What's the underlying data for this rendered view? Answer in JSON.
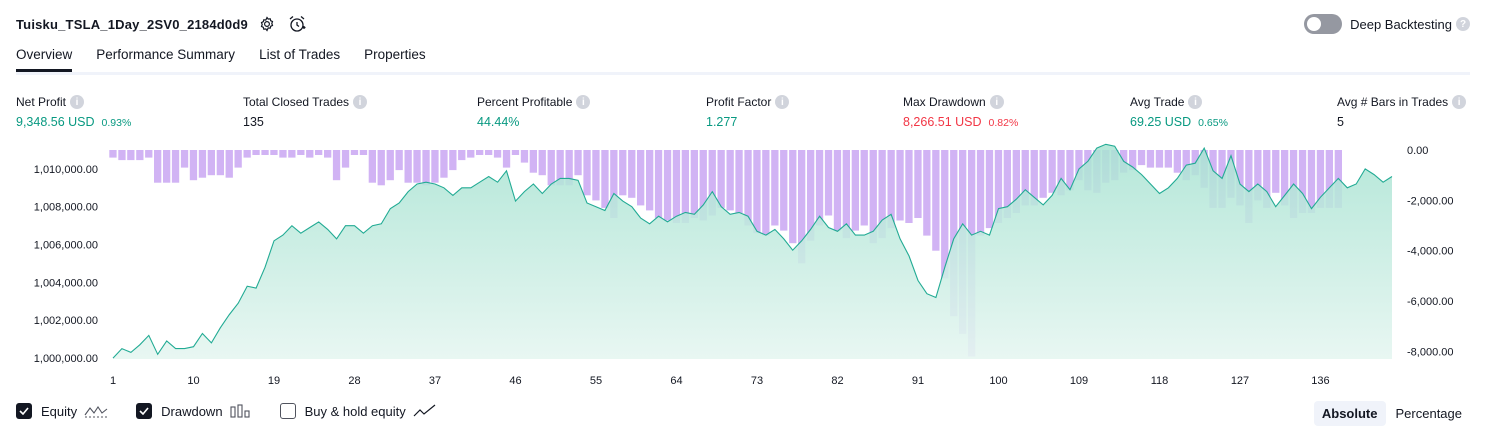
{
  "header": {
    "strategy_title": "Tuisku_TSLA_1Day_2SV0_2184d0d9",
    "icons": [
      "gear-icon",
      "alarm-plus-icon"
    ],
    "deep_backtesting_label": "Deep Backtesting",
    "deep_backtesting_enabled": false
  },
  "tabs": [
    {
      "label": "Overview",
      "active": true
    },
    {
      "label": "Performance Summary",
      "active": false
    },
    {
      "label": "List of Trades",
      "active": false
    },
    {
      "label": "Properties",
      "active": false
    }
  ],
  "metrics": [
    {
      "label": "Net Profit",
      "value": "9,348.56 USD",
      "pct": "0.93%",
      "color": "#089981"
    },
    {
      "label": "Total Closed Trades",
      "value": "135",
      "pct": "",
      "color": "#131722"
    },
    {
      "label": "Percent Profitable",
      "value": "44.44%",
      "pct": "",
      "color": "#089981"
    },
    {
      "label": "Profit Factor",
      "value": "1.277",
      "pct": "",
      "color": "#089981"
    },
    {
      "label": "Max Drawdown",
      "value": "8,266.51 USD",
      "pct": "0.82%",
      "color": "#f23645"
    },
    {
      "label": "Avg Trade",
      "value": "69.25 USD",
      "pct": "0.65%",
      "color": "#089981"
    },
    {
      "label": "Avg # Bars in Trades",
      "value": "5",
      "pct": "",
      "color": "#131722"
    }
  ],
  "legend": {
    "equity_label": "Equity",
    "equity_checked": true,
    "drawdown_label": "Drawdown",
    "drawdown_checked": true,
    "buyhold_label": "Buy & hold equity",
    "buyhold_checked": false
  },
  "mode": {
    "absolute_label": "Absolute",
    "percentage_label": "Percentage",
    "selected": "Absolute"
  },
  "chart_data": {
    "type": "line+bar",
    "x_ticks": [
      "1",
      "10",
      "19",
      "28",
      "37",
      "46",
      "55",
      "64",
      "73",
      "82",
      "91",
      "100",
      "109",
      "118",
      "127",
      "136"
    ],
    "left_axis_ticks": [
      "1,010,000.00",
      "1,008,000.00",
      "1,006,000.00",
      "1,004,000.00",
      "1,002,000.00",
      "1,000,000.00"
    ],
    "right_axis_ticks": [
      "0.00",
      "-2,000.00",
      "-4,000.00",
      "-6,000.00",
      "-8,000.00"
    ],
    "left_ylim": [
      999950,
      1011000
    ],
    "right_ylim": [
      -8300,
      0
    ],
    "colors": {
      "equity_line": "#22ab94",
      "equity_fill": "#cdeee5",
      "drawdown": "#c9a6f2"
    },
    "series": [
      {
        "name": "Equity",
        "axis": "left",
        "values": [
          1000000,
          1000500,
          1000300,
          1000700,
          1001200,
          1000200,
          1000900,
          1000500,
          1000500,
          1000600,
          1001300,
          1000800,
          1001600,
          1002300,
          1002900,
          1003800,
          1003700,
          1004800,
          1006200,
          1006500,
          1007000,
          1006600,
          1006900,
          1007200,
          1006800,
          1006300,
          1007000,
          1007000,
          1006600,
          1007000,
          1007100,
          1007900,
          1008200,
          1008800,
          1009200,
          1009300,
          1009200,
          1009000,
          1008600,
          1009000,
          1009000,
          1009300,
          1009600,
          1009300,
          1009900,
          1008300,
          1008800,
          1009200,
          1008700,
          1009200,
          1009500,
          1009500,
          1009400,
          1008200,
          1008000,
          1007800,
          1008700,
          1008300,
          1008000,
          1007400,
          1007100,
          1007500,
          1007200,
          1007500,
          1007700,
          1007600,
          1008100,
          1008800,
          1008000,
          1007600,
          1007700,
          1007500,
          1006700,
          1006500,
          1006800,
          1006300,
          1005700,
          1006200,
          1006800,
          1007500,
          1006900,
          1006700,
          1007100,
          1006500,
          1006500,
          1006700,
          1007300,
          1007600,
          1006300,
          1005400,
          1004100,
          1003400,
          1003200,
          1004800,
          1006300,
          1007100,
          1006500,
          1006700,
          1006500,
          1007900,
          1008000,
          1008400,
          1008900,
          1008500,
          1008100,
          1008600,
          1009500,
          1008900,
          1010000,
          1010400,
          1011100,
          1011300,
          1011200,
          1010400,
          1010100,
          1009700,
          1009200,
          1008700,
          1009000,
          1009500,
          1010200,
          1010300,
          1011100,
          1009900,
          1009500,
          1010700,
          1009200,
          1008800,
          1009200,
          1008800,
          1008000,
          1008600,
          1009200,
          1008700,
          1007900,
          1008500,
          1009000,
          1009500,
          1009000,
          1009200,
          1010000,
          1009700,
          1009300,
          1009600
        ]
      },
      {
        "name": "Drawdown",
        "axis": "right",
        "values": [
          -300,
          -400,
          -400,
          -400,
          -300,
          -1300,
          -1300,
          -1300,
          -700,
          -1200,
          -1100,
          -1000,
          -1000,
          -1100,
          -700,
          -300,
          -200,
          -200,
          -200,
          -300,
          -300,
          -200,
          -300,
          -200,
          -300,
          -1200,
          -700,
          -200,
          -200,
          -1300,
          -1400,
          -1200,
          -800,
          -1300,
          -1300,
          -1400,
          -1300,
          -1100,
          -800,
          -400,
          -300,
          -200,
          -200,
          -300,
          -700,
          -200,
          -500,
          -900,
          -1000,
          -1400,
          -1400,
          -1400,
          -1000,
          -1800,
          -2000,
          -2300,
          -2700,
          -1800,
          -1900,
          -2200,
          -2400,
          -2700,
          -2800,
          -2900,
          -2900,
          -2700,
          -2800,
          -2600,
          -2300,
          -2400,
          -2500,
          -3000,
          -3300,
          -3400,
          -3000,
          -3200,
          -3700,
          -4500,
          -3600,
          -3000,
          -2600,
          -3200,
          -3500,
          -3200,
          -3000,
          -3700,
          -3500,
          -3100,
          -2800,
          -2900,
          -2700,
          -3400,
          -4000,
          -5100,
          -6600,
          -7300,
          -8200,
          -3400,
          -3100,
          -2900,
          -2700,
          -2500,
          -2200,
          -2200,
          -1900,
          -1700,
          -1800,
          -1600,
          -1200,
          -1600,
          -1700,
          -1300,
          -1200,
          -900,
          -800,
          -600,
          -700,
          -700,
          -700,
          -900,
          -1200,
          -1000,
          -1500,
          -2300,
          -2300,
          -1900,
          -2200,
          -2900,
          -2000,
          -2300,
          -1700,
          -2200,
          -2700,
          -2500,
          -2500,
          -2300,
          -2300,
          -2300
        ]
      }
    ]
  }
}
